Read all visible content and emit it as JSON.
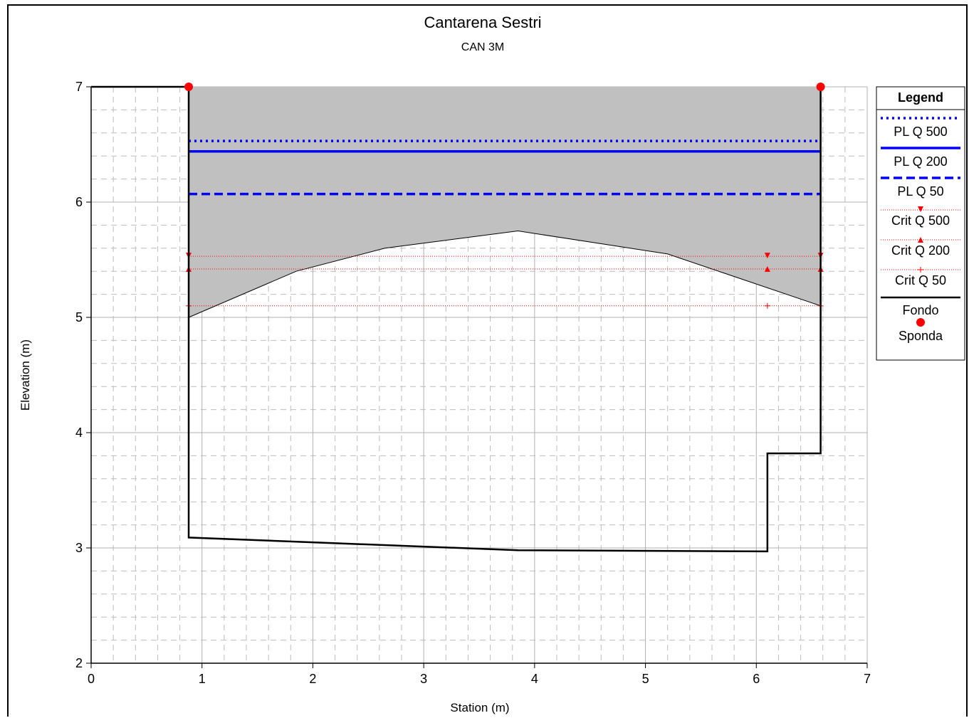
{
  "chart_data": {
    "type": "line",
    "title": "Cantarena Sestri",
    "subtitle": "CAN 3M",
    "xlabel": "Station (m)",
    "ylabel": "Elevation (m)",
    "xlim": [
      0,
      7
    ],
    "ylim": [
      2,
      7
    ],
    "x_ticks": [
      "0",
      "1",
      "2",
      "3",
      "4",
      "5",
      "6",
      "7"
    ],
    "y_ticks": [
      "2",
      "3",
      "4",
      "5",
      "6",
      "7"
    ],
    "grid": true,
    "legend_position": "right",
    "legend_title": "Legend",
    "ground": {
      "name": "Fondo",
      "x": [
        0,
        0.88,
        0.88,
        3.85,
        6.1,
        6.1,
        6.58,
        6.58
      ],
      "y": [
        7.0,
        7.0,
        3.09,
        2.98,
        2.97,
        3.82,
        3.82,
        7.0
      ]
    },
    "banks": {
      "name": "Sponda",
      "x": [
        0.88,
        6.58
      ],
      "y": [
        7.0,
        7.0
      ]
    },
    "obstruction": {
      "x": [
        0.88,
        1.85,
        2.65,
        3.85,
        5.2,
        6.58
      ],
      "y": [
        5.0,
        5.4,
        5.6,
        5.75,
        5.55,
        5.1
      ],
      "top": 7.0
    },
    "water_surfaces": [
      {
        "name": "PL Q 500",
        "y": 6.53,
        "x_range": [
          0.88,
          6.58
        ],
        "color": "#0000ff",
        "style": "dotted"
      },
      {
        "name": "PL Q 200",
        "y": 6.44,
        "x_range": [
          0.88,
          6.58
        ],
        "color": "#0000ff",
        "style": "solid"
      },
      {
        "name": "PL Q 50",
        "y": 6.07,
        "x_range": [
          0.88,
          6.58
        ],
        "color": "#0000ff",
        "style": "dashed"
      }
    ],
    "critical_depths": [
      {
        "name": "Crit Q 500",
        "y": 5.53,
        "x_range": [
          0.88,
          6.58
        ],
        "marker_x": [
          0.88,
          6.1,
          6.58
        ],
        "marker": "triangle-down",
        "color": "#ff0000"
      },
      {
        "name": "Crit Q 200",
        "y": 5.42,
        "x_range": [
          0.88,
          6.58
        ],
        "marker_x": [
          0.88,
          6.1,
          6.58
        ],
        "marker": "triangle-up",
        "color": "#ff0000"
      },
      {
        "name": "Crit Q 50",
        "y": 5.1,
        "x_range": [
          0.88,
          6.58
        ],
        "marker_x": [
          0.88,
          6.1,
          6.58
        ],
        "marker": "plus",
        "color": "#ff0000"
      }
    ]
  }
}
